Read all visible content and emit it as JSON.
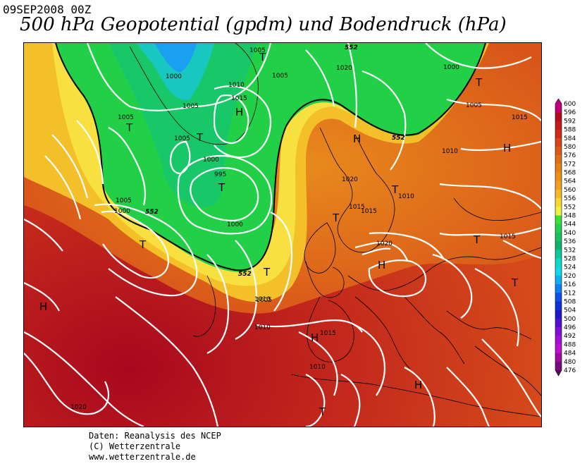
{
  "header": {
    "date": "09SEP2008 00Z",
    "title": "500 hPa Geopotential (gpdm) und Bodendruck (hPa)"
  },
  "legend": {
    "levels": [
      "600",
      "596",
      "592",
      "588",
      "584",
      "580",
      "576",
      "572",
      "568",
      "564",
      "560",
      "556",
      "552",
      "548",
      "544",
      "540",
      "536",
      "532",
      "528",
      "524",
      "520",
      "516",
      "512",
      "508",
      "504",
      "500",
      "496",
      "492",
      "488",
      "484",
      "480",
      "476"
    ],
    "colors": [
      "#c0007a",
      "#b00e20",
      "#c21a18",
      "#ce2c18",
      "#d64418",
      "#dc5a18",
      "#e07018",
      "#e88018",
      "#ec9018",
      "#f0a020",
      "#f4b828",
      "#f8d830",
      "#f0f040",
      "#38e038",
      "#20d050",
      "#18c060",
      "#10b070",
      "#10c8a0",
      "#10d8c8",
      "#10d8e8",
      "#10b0f0",
      "#1080f0",
      "#1050e8",
      "#1030d8",
      "#2018c8",
      "#5010d0",
      "#8010d8",
      "#a010d8",
      "#c010d0",
      "#a00ca0",
      "#7a0a82",
      "#5a0860"
    ]
  },
  "map": {
    "pressure_labels": [
      "1005",
      "1000",
      "1005",
      "1010",
      "1015",
      "1005",
      "1005",
      "1000",
      "995",
      "1000",
      "1005",
      "1000",
      "1005",
      "1010",
      "1020",
      "1000",
      "1005",
      "1015",
      "1010",
      "1020",
      "1015",
      "1015",
      "1010",
      "1020",
      "1015",
      "1005",
      "1010",
      "1015",
      "1010",
      "1020"
    ],
    "contour_552_labels": [
      "552",
      "552",
      "552",
      "552"
    ],
    "high_label": "H",
    "low_label": "T"
  },
  "credits": {
    "line1": "Daten: Reanalysis des NCEP",
    "line2": "(C) Wetterzentrale",
    "line3": "www.wetterzentrale.de"
  }
}
